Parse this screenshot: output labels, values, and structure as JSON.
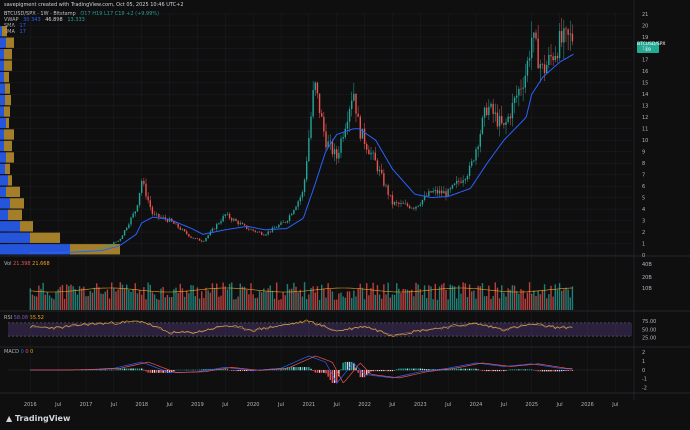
{
  "header": {
    "text": "savepigment created with TradingView.com, Oct 05, 2025 10:46 UTC+2"
  },
  "legend": {
    "symbol": "BTCUSD/SPX · 1W · Bitstamp",
    "ohlc": "O17  H19  L17  C19  +2 (+9.99%)",
    "vwap_label": "VWAP",
    "vwap_v1": "30.343",
    "vwap_v2": "46.898",
    "vwap_v3": "13.333",
    "sma1_label": "SMA",
    "sma1_value": "17",
    "sma2_label": "SMA",
    "sma2_value": "17"
  },
  "volume_legend": {
    "label": "Vol",
    "v1": "21.398",
    "v2": "21.668"
  },
  "rsi_legend": {
    "label": "RSI",
    "v1": "58.08",
    "v2": "55.52"
  },
  "macd_legend": {
    "label": "MACD",
    "v1": "0",
    "v2": "0",
    "v3": "0"
  },
  "price_tag": {
    "symbol": "BTCUSD/SPX",
    "value": "19",
    "time": "1d 3h 21m"
  },
  "footer": {
    "logo": "TradingView"
  },
  "colors": {
    "up": "#26a69a",
    "down": "#ef5350",
    "sma": "#2962ff",
    "rsi": "#f7a21b",
    "rsi_band": "#7e57c2",
    "volume_profile_up": "#2962ff",
    "volume_profile_down": "#c99a2e"
  },
  "chart_data": [
    {
      "type": "line",
      "name": "price",
      "x_ticks": [
        "2016",
        "Jul",
        "2017",
        "Jul",
        "2018",
        "Jul",
        "2019",
        "Jul",
        "2020",
        "Jul",
        "2021",
        "Jul",
        "2022",
        "Jul",
        "2023",
        "Jul",
        "2024",
        "Jul",
        "2025",
        "Jul",
        "2026",
        "Jul"
      ],
      "y_ticks": [
        0,
        1,
        2,
        3,
        4,
        5,
        6,
        7,
        8,
        9,
        10,
        11,
        12,
        13,
        14,
        15,
        16,
        17,
        18,
        19,
        20,
        21
      ],
      "ylim": [
        0,
        21
      ],
      "x": [
        2016.0,
        2016.5,
        2017.0,
        2017.3,
        2017.6,
        2017.9,
        2018.0,
        2018.2,
        2018.5,
        2018.9,
        2019.1,
        2019.5,
        2019.9,
        2020.2,
        2020.6,
        2020.9,
        2021.1,
        2021.3,
        2021.5,
        2021.8,
        2021.9,
        2022.2,
        2022.5,
        2022.9,
        2023.2,
        2023.5,
        2023.9,
        2024.2,
        2024.5,
        2024.9,
        2025.0,
        2025.2,
        2025.5,
        2025.75
      ],
      "close": [
        0.2,
        0.22,
        0.4,
        0.6,
        1.3,
        4.0,
        6.5,
        3.5,
        3.0,
        1.5,
        1.2,
        3.5,
        2.3,
        1.8,
        3.0,
        5.5,
        15,
        10,
        8.5,
        14.5,
        11,
        8,
        4.5,
        4.2,
        5.5,
        5.4,
        7.5,
        13,
        11,
        16,
        19,
        16,
        18.5,
        19
      ],
      "sma": [
        0.2,
        0.2,
        0.3,
        0.4,
        0.8,
        1.8,
        2.8,
        3.3,
        3.1,
        2.3,
        1.8,
        2.2,
        2.5,
        2.2,
        2.3,
        3.2,
        6,
        9,
        10.5,
        11,
        11,
        10,
        7.5,
        5.3,
        5,
        5.1,
        5.8,
        8,
        10,
        12,
        14,
        15.5,
        16.8,
        17.5
      ]
    },
    {
      "type": "bar",
      "name": "Vol",
      "y_ticks": [
        "40B",
        "20B",
        "10B"
      ]
    },
    {
      "type": "line",
      "name": "RSI",
      "y_ticks": [
        75,
        50,
        25
      ],
      "ylim": [
        0,
        100
      ],
      "x": [
        2016.0,
        2016.5,
        2017.0,
        2017.5,
        2018.0,
        2018.5,
        2019.0,
        2019.5,
        2020.0,
        2020.5,
        2021.0,
        2021.5,
        2022.0,
        2022.5,
        2023.0,
        2023.5,
        2024.0,
        2024.5,
        2025.0,
        2025.5,
        2025.75
      ],
      "values": [
        58,
        55,
        66,
        70,
        75,
        40,
        42,
        62,
        48,
        62,
        76,
        45,
        60,
        33,
        47,
        58,
        68,
        50,
        66,
        55,
        58
      ]
    },
    {
      "type": "bar",
      "name": "MACD",
      "y_ticks": [
        2,
        1,
        0,
        -1,
        -2
      ],
      "ylim": [
        -2.5,
        2.5
      ],
      "x": [
        2016.0,
        2016.5,
        2017.0,
        2017.5,
        2018.0,
        2018.5,
        2019.0,
        2019.5,
        2020.0,
        2020.5,
        2021.0,
        2021.3,
        2021.5,
        2021.8,
        2022.0,
        2022.5,
        2023.0,
        2023.5,
        2024.0,
        2024.5,
        2025.0,
        2025.5,
        2025.75
      ],
      "values": [
        0,
        0,
        0.05,
        0.2,
        0.9,
        -0.3,
        -0.2,
        0.3,
        -0.05,
        0.2,
        1.6,
        0.9,
        -1.5,
        0.8,
        -0.5,
        -0.9,
        -0.2,
        0.2,
        0.8,
        0.4,
        0.7,
        0.2,
        0.1
      ]
    }
  ]
}
